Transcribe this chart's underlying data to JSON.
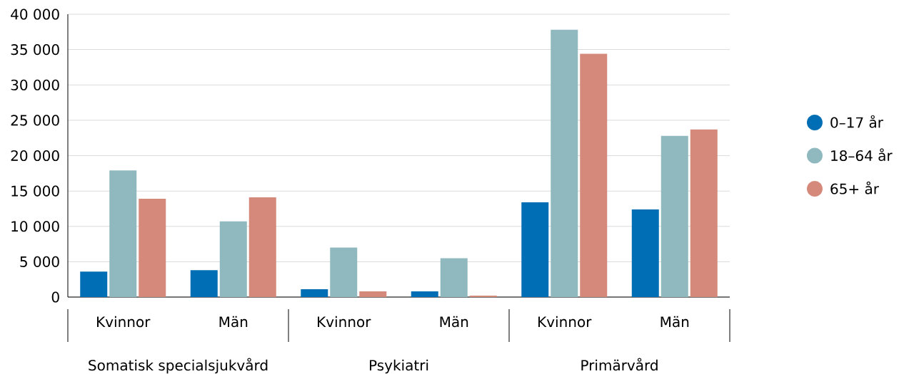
{
  "chart_data": {
    "type": "bar",
    "categories": [
      "Kvinnor",
      "Män",
      "Kvinnor",
      "Män",
      "Kvinnor",
      "Män"
    ],
    "series": [
      {
        "name": "0–17 år",
        "color": "#006eb4",
        "values": [
          3600,
          3800,
          1100,
          800,
          13400,
          12400
        ]
      },
      {
        "name": "18–64 år",
        "color": "#8fb9be",
        "values": [
          17900,
          10700,
          7000,
          5500,
          37800,
          22800
        ]
      },
      {
        "name": "65+ år",
        "color": "#d4897b",
        "values": [
          13900,
          14100,
          800,
          200,
          34400,
          23700
        ]
      }
    ],
    "annotations": [
      "Somatisk specialsjukvård",
      "Psykiatri",
      "Primärvård"
    ],
    "ylim": [
      0,
      40000
    ],
    "yticks": [
      0,
      {
        "value": 5000,
        "label": "5 000"
      },
      {
        "value": 10000,
        "label": "10 000"
      },
      {
        "value": 15000,
        "label": "15 000"
      },
      {
        "value": 20000,
        "label": "20 000"
      },
      {
        "value": 25000,
        "label": "25 000"
      },
      {
        "value": 30000,
        "label": "30 000"
      },
      {
        "value": 35000,
        "label": "35 000"
      },
      {
        "value": 40000,
        "label": "40 000"
      }
    ],
    "grid": "y",
    "legend": "right"
  }
}
